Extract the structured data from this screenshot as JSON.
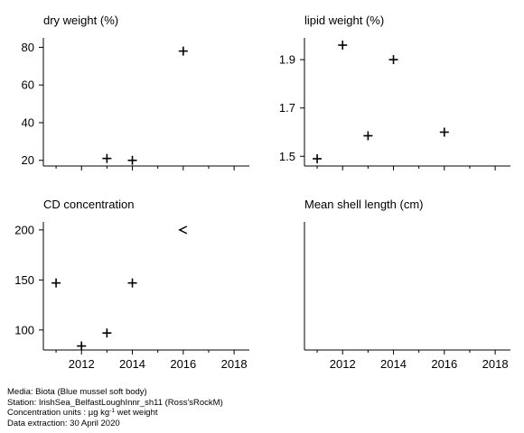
{
  "chart_data": [
    {
      "type": "scatter",
      "title": "dry weight (%)",
      "x_ticks": [
        2012,
        2014,
        2016,
        2018
      ],
      "xlim": [
        2010.5,
        2018.6
      ],
      "ylim": [
        17,
        85
      ],
      "y_ticks": [
        "20",
        "40",
        "60",
        "80"
      ],
      "show_x_tick_labels": false,
      "points": [
        {
          "x": 2013,
          "y": 21,
          "marker": "+"
        },
        {
          "x": 2014,
          "y": 20,
          "marker": "+"
        },
        {
          "x": 2016,
          "y": 78,
          "marker": "+"
        }
      ]
    },
    {
      "type": "scatter",
      "title": "lipid weight (%)",
      "x_ticks": [
        2012,
        2014,
        2016,
        2018
      ],
      "xlim": [
        2010.5,
        2018.6
      ],
      "ylim": [
        1.46,
        1.99
      ],
      "y_ticks": [
        "1.5",
        "1.7",
        "1.9"
      ],
      "show_x_tick_labels": false,
      "points": [
        {
          "x": 2011,
          "y": 1.49,
          "marker": "+"
        },
        {
          "x": 2012,
          "y": 1.96,
          "marker": "+"
        },
        {
          "x": 2013,
          "y": 1.585,
          "marker": "+"
        },
        {
          "x": 2014,
          "y": 1.9,
          "marker": "+"
        },
        {
          "x": 2016,
          "y": 1.6,
          "marker": "+"
        }
      ]
    },
    {
      "type": "scatter",
      "title": "CD concentration",
      "x_ticks": [
        2012,
        2014,
        2016,
        2018
      ],
      "xlim": [
        2010.5,
        2018.6
      ],
      "ylim": [
        80,
        208
      ],
      "y_ticks": [
        "100",
        "150",
        "200"
      ],
      "show_x_tick_labels": true,
      "points": [
        {
          "x": 2011,
          "y": 147,
          "marker": "+"
        },
        {
          "x": 2012,
          "y": 84,
          "marker": "+"
        },
        {
          "x": 2013,
          "y": 97,
          "marker": "+"
        },
        {
          "x": 2014,
          "y": 147,
          "marker": "+"
        },
        {
          "x": 2016,
          "y": 200,
          "marker": "<"
        }
      ]
    },
    {
      "type": "scatter",
      "title": "Mean shell length (cm)",
      "x_ticks": [
        2012,
        2014,
        2016,
        2018
      ],
      "xlim": [
        2010.5,
        2018.6
      ],
      "ylim": [
        0,
        1
      ],
      "y_ticks": [],
      "show_x_tick_labels": true,
      "points": []
    }
  ],
  "footer": {
    "media": "Media: Biota (Blue mussel soft body)",
    "station": "Station: IrishSea_BelfastLoughInnr_sh11 (Ross'sRockM)",
    "conc_prefix": "Concentration units :  µg kg",
    "conc_sup": "-1",
    "conc_suffix": " wet weight",
    "extraction": "Data extraction: 30 April 2020"
  }
}
